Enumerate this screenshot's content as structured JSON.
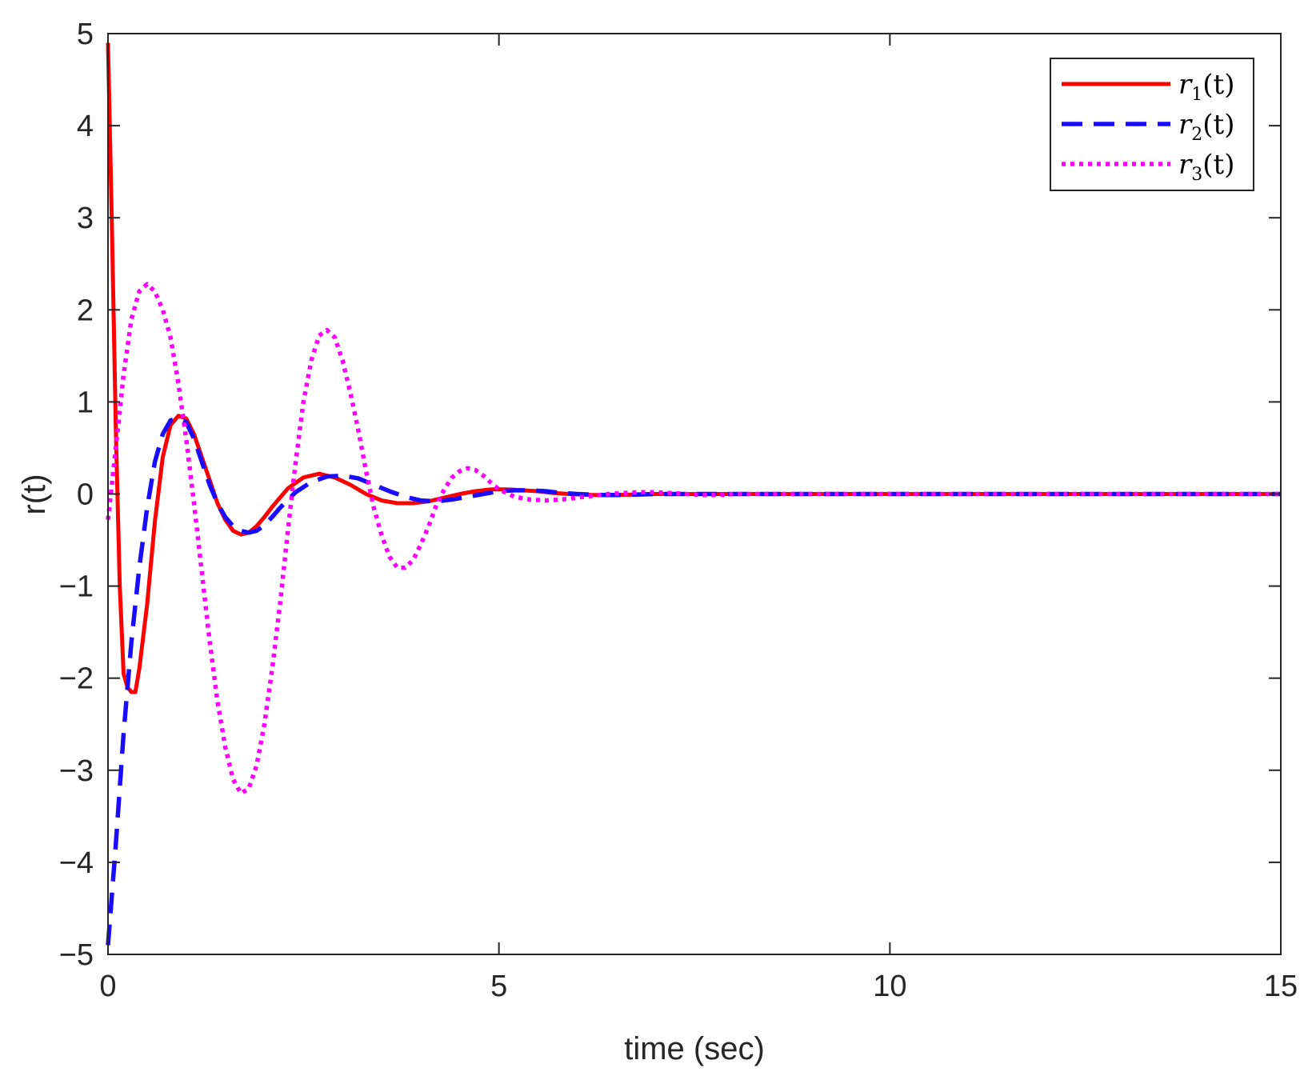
{
  "chart_data": {
    "type": "line",
    "xlabel": "time (sec)",
    "ylabel": "r(t)",
    "xlim": [
      0,
      15
    ],
    "ylim": [
      -5,
      5
    ],
    "xticks": [
      0,
      5,
      10,
      15
    ],
    "yticks": [
      -5,
      -4,
      -3,
      -2,
      -1,
      0,
      1,
      2,
      3,
      4,
      5
    ],
    "xtick_labels": [
      "0",
      "5",
      "10",
      "15"
    ],
    "ytick_labels": [
      "−5",
      "−4",
      "−3",
      "−2",
      "−1",
      "0",
      "1",
      "2",
      "3",
      "4",
      "5"
    ],
    "grid": false,
    "legend_position": "top-right",
    "series": [
      {
        "name": "r1(t)",
        "name_base": "r",
        "name_sub": "1",
        "name_arg": "(t)",
        "color": "#ff0000",
        "style": "solid",
        "x": [
          0,
          0.05,
          0.1,
          0.15,
          0.2,
          0.25,
          0.3,
          0.35,
          0.4,
          0.5,
          0.6,
          0.7,
          0.8,
          0.9,
          1.0,
          1.1,
          1.2,
          1.3,
          1.4,
          1.5,
          1.6,
          1.7,
          1.8,
          1.9,
          2.0,
          2.1,
          2.2,
          2.3,
          2.5,
          2.7,
          2.9,
          3.1,
          3.3,
          3.5,
          3.7,
          3.9,
          4.1,
          4.3,
          4.5,
          4.7,
          4.9,
          5.1,
          5.3,
          5.5,
          5.7,
          5.9,
          6.2,
          6.5,
          7.0,
          7.5,
          8.0,
          9.0,
          10.0,
          12.0,
          15.0
        ],
        "y": [
          4.9,
          2.9,
          0.7,
          -1.0,
          -1.95,
          -2.1,
          -2.15,
          -2.15,
          -1.9,
          -1.2,
          -0.3,
          0.4,
          0.75,
          0.85,
          0.82,
          0.65,
          0.4,
          0.15,
          -0.1,
          -0.28,
          -0.4,
          -0.44,
          -0.42,
          -0.35,
          -0.25,
          -0.14,
          -0.04,
          0.06,
          0.18,
          0.22,
          0.18,
          0.1,
          0.0,
          -0.07,
          -0.1,
          -0.1,
          -0.08,
          -0.04,
          0.0,
          0.03,
          0.05,
          0.05,
          0.04,
          0.03,
          0.01,
          0.0,
          -0.01,
          -0.01,
          0.0,
          0.0,
          0.0,
          0.0,
          0.0,
          0.0,
          0.0
        ]
      },
      {
        "name": "r2(t)",
        "name_base": "r",
        "name_sub": "2",
        "name_arg": "(t)",
        "color": "#1a0dff",
        "style": "dashed",
        "x": [
          0,
          0.1,
          0.2,
          0.3,
          0.4,
          0.5,
          0.6,
          0.7,
          0.8,
          0.9,
          1.0,
          1.1,
          1.2,
          1.3,
          1.4,
          1.5,
          1.6,
          1.7,
          1.8,
          1.9,
          2.0,
          2.1,
          2.2,
          2.4,
          2.6,
          2.8,
          3.0,
          3.2,
          3.4,
          3.6,
          3.8,
          4.0,
          4.2,
          4.4,
          4.6,
          4.8,
          5.0,
          5.2,
          5.4,
          5.6,
          5.8,
          6.0,
          6.3,
          6.6,
          7.0,
          7.5,
          8.0,
          9.0,
          10.0,
          12.0,
          15.0
        ],
        "y": [
          -4.9,
          -3.8,
          -2.6,
          -1.6,
          -0.8,
          -0.15,
          0.35,
          0.65,
          0.8,
          0.82,
          0.78,
          0.6,
          0.35,
          0.1,
          -0.1,
          -0.25,
          -0.35,
          -0.4,
          -0.42,
          -0.4,
          -0.34,
          -0.25,
          -0.15,
          0.02,
          0.13,
          0.19,
          0.2,
          0.17,
          0.1,
          0.03,
          -0.03,
          -0.07,
          -0.08,
          -0.06,
          -0.03,
          0.0,
          0.03,
          0.04,
          0.04,
          0.03,
          0.01,
          0.0,
          -0.01,
          -0.01,
          0.0,
          0.0,
          0.0,
          0.0,
          0.0,
          0.0,
          0.0
        ]
      },
      {
        "name": "r3(t)",
        "name_base": "r",
        "name_sub": "3",
        "name_arg": "(t)",
        "color": "#ff00ff",
        "style": "dotted",
        "x": [
          0,
          0.1,
          0.2,
          0.3,
          0.4,
          0.5,
          0.6,
          0.7,
          0.8,
          0.9,
          1.0,
          1.1,
          1.2,
          1.3,
          1.4,
          1.5,
          1.6,
          1.7,
          1.8,
          1.9,
          2.0,
          2.1,
          2.2,
          2.3,
          2.4,
          2.5,
          2.6,
          2.7,
          2.8,
          2.9,
          3.0,
          3.1,
          3.2,
          3.3,
          3.4,
          3.5,
          3.6,
          3.7,
          3.8,
          3.9,
          4.0,
          4.1,
          4.2,
          4.3,
          4.4,
          4.5,
          4.6,
          4.7,
          4.8,
          4.9,
          5.0,
          5.2,
          5.4,
          5.6,
          5.8,
          6.0,
          6.2,
          6.4,
          6.6,
          6.8,
          7.0,
          7.2,
          7.4,
          7.6,
          7.8,
          8.0,
          8.5,
          9.0,
          9.5,
          10.0,
          11.0,
          12.0,
          15.0
        ],
        "y": [
          -0.28,
          0.5,
          1.3,
          1.9,
          2.2,
          2.28,
          2.2,
          2.0,
          1.7,
          1.2,
          0.6,
          -0.1,
          -0.85,
          -1.6,
          -2.25,
          -2.75,
          -3.1,
          -3.25,
          -3.2,
          -2.95,
          -2.5,
          -1.9,
          -1.2,
          -0.4,
          0.35,
          1.0,
          1.45,
          1.72,
          1.78,
          1.7,
          1.45,
          1.1,
          0.7,
          0.25,
          -0.15,
          -0.45,
          -0.68,
          -0.8,
          -0.8,
          -0.72,
          -0.55,
          -0.35,
          -0.12,
          0.05,
          0.18,
          0.25,
          0.28,
          0.26,
          0.2,
          0.12,
          0.05,
          -0.03,
          -0.06,
          -0.07,
          -0.06,
          -0.04,
          -0.02,
          0.0,
          0.01,
          0.02,
          0.02,
          0.01,
          0.0,
          -0.01,
          -0.01,
          0.0,
          0.0,
          0.0,
          0.0,
          0.0,
          0.0,
          0.0,
          0.0
        ]
      }
    ]
  }
}
